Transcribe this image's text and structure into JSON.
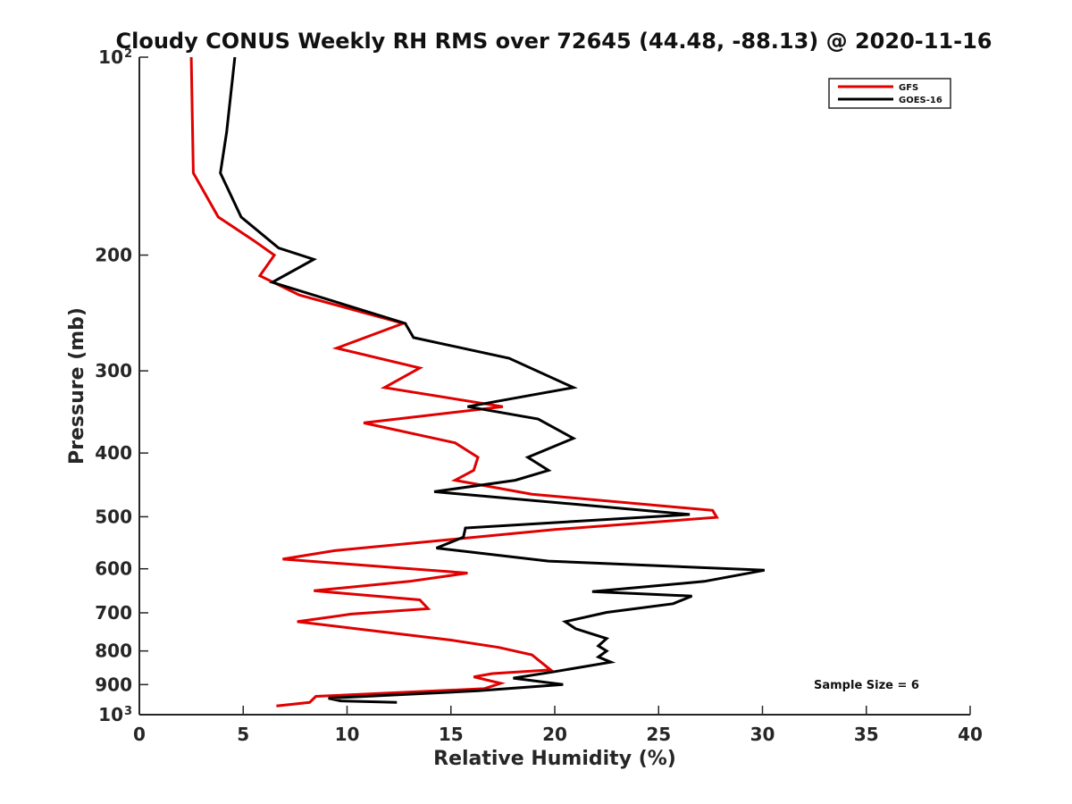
{
  "chart_data": {
    "type": "line",
    "title": "Cloudy CONUS Weekly RH RMS over 72645 (44.48, -88.13) @ 2020-11-16",
    "xlabel": "Relative Humidity (%)",
    "ylabel": "Pressure (mb)",
    "xlim": [
      0,
      40
    ],
    "ylim": [
      100,
      1000
    ],
    "y_scale": "log",
    "y_reversed": true,
    "x_ticks": [
      "0",
      "5",
      "10",
      "15",
      "20",
      "25",
      "30",
      "35",
      "40"
    ],
    "y_ticks": [
      {
        "value": 100,
        "label": "10",
        "sup": "2"
      },
      {
        "value": 200,
        "label": "200"
      },
      {
        "value": 300,
        "label": "300"
      },
      {
        "value": 400,
        "label": "400"
      },
      {
        "value": 500,
        "label": "500"
      },
      {
        "value": 600,
        "label": "600"
      },
      {
        "value": 700,
        "label": "700"
      },
      {
        "value": 800,
        "label": "800"
      },
      {
        "value": 900,
        "label": "900"
      },
      {
        "value": 1000,
        "label": "10",
        "sup": "3"
      }
    ],
    "grid": false,
    "legend_position": "top-right",
    "annotation": "Sample Size = 6",
    "series": [
      {
        "name": "GFS",
        "color": "#e00000",
        "points": [
          [
            2.5,
            100
          ],
          [
            2.6,
            150
          ],
          [
            3.8,
            175
          ],
          [
            5.5,
            190
          ],
          [
            6.5,
            200
          ],
          [
            5.8,
            215
          ],
          [
            7.7,
            230
          ],
          [
            12.7,
            254
          ],
          [
            9.5,
            277
          ],
          [
            13.5,
            297
          ],
          [
            11.8,
            318
          ],
          [
            17.5,
            340
          ],
          [
            10.8,
            360
          ],
          [
            15.2,
            386
          ],
          [
            16.3,
            406
          ],
          [
            16.1,
            425
          ],
          [
            15.2,
            440
          ],
          [
            18.9,
            462
          ],
          [
            27.6,
            489
          ],
          [
            27.8,
            501
          ],
          [
            20.0,
            523
          ],
          [
            9.4,
            563
          ],
          [
            6.9,
            580
          ],
          [
            15.8,
            609
          ],
          [
            13.0,
            627
          ],
          [
            8.4,
            648
          ],
          [
            13.5,
            669
          ],
          [
            13.9,
            690
          ],
          [
            10.2,
            703
          ],
          [
            7.6,
            722
          ],
          [
            10.6,
            741
          ],
          [
            15.0,
            770
          ],
          [
            17.3,
            790
          ],
          [
            18.9,
            811
          ],
          [
            19.8,
            855
          ],
          [
            17.0,
            866
          ],
          [
            16.1,
            876
          ],
          [
            17.4,
            896
          ],
          [
            16.6,
            913
          ],
          [
            8.5,
            938
          ],
          [
            8.2,
            958
          ],
          [
            6.6,
            970
          ]
        ]
      },
      {
        "name": "GOES-16",
        "color": "#000000",
        "points": [
          [
            4.6,
            100
          ],
          [
            4.2,
            130
          ],
          [
            3.9,
            150
          ],
          [
            4.9,
            175
          ],
          [
            6.7,
            195
          ],
          [
            8.4,
            203
          ],
          [
            6.4,
            220
          ],
          [
            12.8,
            254
          ],
          [
            13.2,
            267
          ],
          [
            17.8,
            287
          ],
          [
            20.9,
            318
          ],
          [
            15.8,
            340
          ],
          [
            19.2,
            355
          ],
          [
            20.9,
            380
          ],
          [
            18.7,
            406
          ],
          [
            19.7,
            425
          ],
          [
            18.1,
            440
          ],
          [
            14.2,
            458
          ],
          [
            26.5,
            496
          ],
          [
            15.7,
            520
          ],
          [
            15.6,
            537
          ],
          [
            14.3,
            558
          ],
          [
            19.7,
            584
          ],
          [
            30.1,
            603
          ],
          [
            27.2,
            627
          ],
          [
            21.8,
            650
          ],
          [
            26.6,
            660
          ],
          [
            25.7,
            678
          ],
          [
            22.5,
            699
          ],
          [
            20.5,
            722
          ],
          [
            21.0,
            740
          ],
          [
            22.5,
            766
          ],
          [
            22.1,
            786
          ],
          [
            22.5,
            800
          ],
          [
            22.1,
            817
          ],
          [
            22.7,
            832
          ],
          [
            20.0,
            860
          ],
          [
            18.0,
            880
          ],
          [
            20.4,
            900
          ],
          [
            16.3,
            920
          ],
          [
            9.1,
            944
          ],
          [
            9.7,
            953
          ],
          [
            12.4,
            958
          ]
        ]
      }
    ]
  }
}
